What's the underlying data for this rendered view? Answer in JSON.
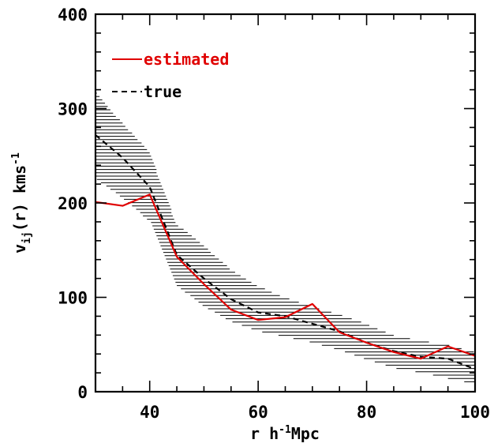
{
  "chart_data": {
    "type": "line",
    "title": "",
    "xlabel": {
      "prefix": "r h",
      "sup": "-1",
      "suffix": "Mpc"
    },
    "ylabel": {
      "prefix": "v",
      "sub": "ij",
      "middle": "(r) kms",
      "sup": "-1"
    },
    "xlim": [
      30,
      100
    ],
    "ylim": [
      0,
      400
    ],
    "xticks": [
      40,
      60,
      80,
      100
    ],
    "yticks": [
      0,
      100,
      200,
      300,
      400
    ],
    "x_minor_step": 5,
    "y_minor_step": 20,
    "legend_position": "top-left",
    "series": [
      {
        "name": "estimated",
        "color": "#e00000",
        "style": "solid",
        "x": [
          30,
          35,
          40,
          45,
          50,
          55,
          60,
          65,
          70,
          75,
          80,
          85,
          90,
          95,
          100
        ],
        "y": [
          201,
          197,
          209,
          143,
          114,
          87,
          76,
          79,
          93,
          63,
          52,
          42,
          35,
          48,
          38
        ]
      },
      {
        "name": "true",
        "color": "#000000",
        "style": "dashed",
        "x": [
          30,
          35,
          40,
          45,
          50,
          55,
          60,
          65,
          70,
          75,
          80,
          85,
          90,
          95,
          100
        ],
        "y": [
          272,
          248,
          217,
          145,
          120,
          98,
          84,
          80,
          72,
          64,
          52,
          43,
          37,
          35,
          24
        ]
      }
    ],
    "error_band": {
      "color": "#000000",
      "style": "hatched",
      "x": [
        30,
        35,
        40,
        45,
        50,
        55,
        60,
        65,
        70,
        75,
        80,
        85,
        90,
        95,
        100
      ],
      "low": [
        225,
        205,
        180,
        112,
        90,
        74,
        64,
        58,
        52,
        44,
        34,
        25,
        20,
        14,
        8
      ],
      "high": [
        318,
        285,
        255,
        178,
        155,
        130,
        112,
        100,
        90,
        82,
        72,
        60,
        54,
        50,
        42
      ]
    }
  }
}
